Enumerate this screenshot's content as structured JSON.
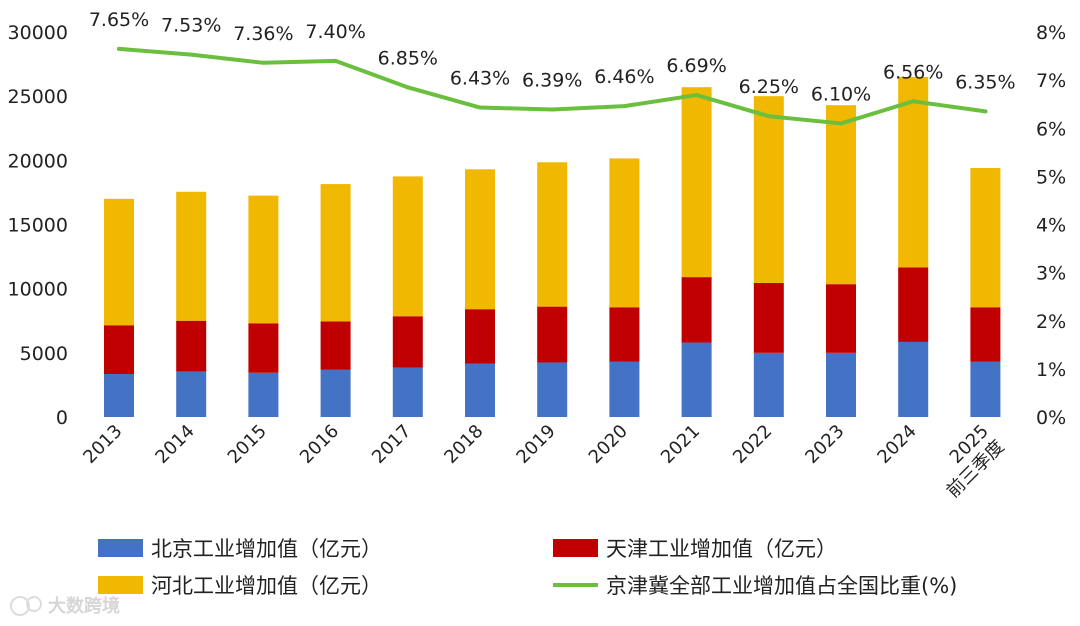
{
  "chart_data": {
    "type": "bar",
    "stacked": true,
    "categories": [
      "2013",
      "2014",
      "2015",
      "2016",
      "2017",
      "2018",
      "2019",
      "2020",
      "2021",
      "2022",
      "2023",
      "2024",
      "2025 前三季度"
    ],
    "series": [
      {
        "name": "北京工业增加值（亿元）",
        "axis": "left",
        "color": "#4472C4",
        "values": [
          3350,
          3550,
          3450,
          3700,
          3850,
          4150,
          4250,
          4300,
          5800,
          5000,
          5000,
          5850,
          4300
        ]
      },
      {
        "name": "天津工业增加值（亿元）",
        "axis": "left",
        "color": "#C00000",
        "values": [
          3800,
          3950,
          3850,
          3750,
          4000,
          4250,
          4350,
          4250,
          5100,
          5450,
          5350,
          5800,
          4250
        ]
      },
      {
        "name": "河北工业增加值（亿元）",
        "axis": "left",
        "color": "#F0B800",
        "values": [
          9850,
          10050,
          9950,
          10700,
          10900,
          10900,
          11250,
          11600,
          14800,
          14550,
          13950,
          14850,
          10850
        ]
      },
      {
        "name": "京津冀全部工业增加值占全国比重(%)",
        "type": "line",
        "axis": "right",
        "color": "#6BBF3E",
        "values": [
          7.65,
          7.53,
          7.36,
          7.4,
          6.85,
          6.43,
          6.39,
          6.46,
          6.69,
          6.25,
          6.1,
          6.56,
          6.35
        ],
        "labels": [
          "7.65%",
          "7.53%",
          "7.36%",
          "7.40%",
          "6.85%",
          "6.43%",
          "6.39%",
          "6.46%",
          "6.69%",
          "6.25%",
          "6.10%",
          "6.56%",
          "6.35%"
        ]
      }
    ],
    "y_left": {
      "min": 0,
      "max": 30000,
      "ticks": [
        "0",
        "5000",
        "10000",
        "15000",
        "20000",
        "25000",
        "30000"
      ]
    },
    "y_right": {
      "min": 0,
      "max": 8,
      "ticks": [
        "0%",
        "1%",
        "2%",
        "3%",
        "4%",
        "5%",
        "6%",
        "7%",
        "8%"
      ]
    },
    "legend_position": "bottom",
    "grid": false
  },
  "watermark": {
    "text": "大数跨境"
  }
}
